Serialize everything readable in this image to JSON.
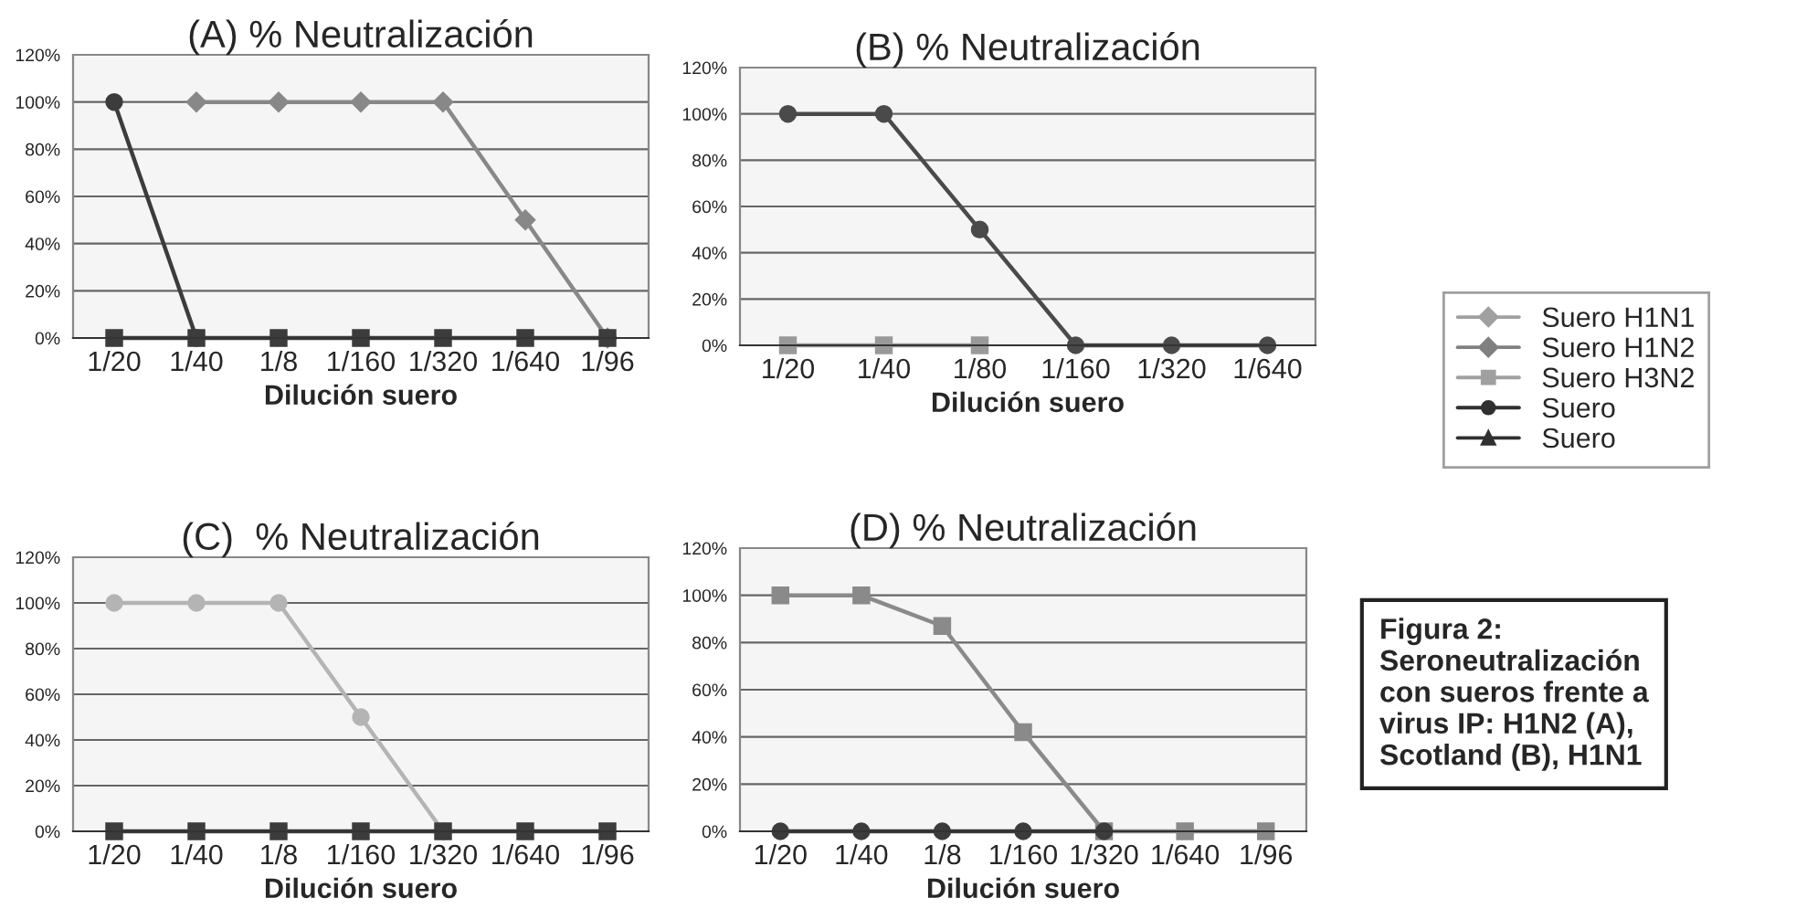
{
  "chart_data": [
    {
      "type": "line",
      "title": "(A) % Neutralización",
      "xlabel": "Dilución suero",
      "categories": [
        "1/20",
        "1/40",
        "1/8",
        "1/160",
        "1/320",
        "1/640",
        "1/96"
      ],
      "ylim": [
        0,
        120
      ],
      "yticks": [
        {
          "value": 0,
          "label": "0%"
        },
        {
          "value": 20,
          "label": "20%"
        },
        {
          "value": 40,
          "label": "40%"
        },
        {
          "value": 60,
          "label": "60%"
        },
        {
          "value": 80,
          "label": "80%"
        },
        {
          "value": 100,
          "label": "100%"
        },
        {
          "value": 120,
          "label": "120%"
        }
      ],
      "grid": "y",
      "series": [
        {
          "color": "#888888",
          "marker": "diamond",
          "values": [
            null,
            100,
            100,
            100,
            100,
            50,
            0
          ]
        },
        {
          "color": "#3c3c3c",
          "marker": "circle",
          "values": [
            100,
            0,
            null,
            null,
            null,
            null,
            null
          ]
        },
        {
          "color": "#3c3c3c",
          "marker": "square",
          "values": [
            0,
            0,
            0,
            0,
            0,
            0,
            0
          ]
        }
      ]
    },
    {
      "type": "line",
      "title": "(B) % Neutralización",
      "xlabel": "Dilución suero",
      "categories": [
        "1/20",
        "1/40",
        "1/80",
        "1/160",
        "1/320",
        "1/640"
      ],
      "ylim": [
        0,
        120
      ],
      "yticks": [
        {
          "value": 0,
          "label": "0%"
        },
        {
          "value": 20,
          "label": "20%"
        },
        {
          "value": 40,
          "label": "40%"
        },
        {
          "value": 60,
          "label": "60%"
        },
        {
          "value": 80,
          "label": "80%"
        },
        {
          "value": 100,
          "label": "100%"
        },
        {
          "value": 120,
          "label": "120%"
        }
      ],
      "grid": "y",
      "series": [
        {
          "color": "#999999",
          "marker": "square",
          "values": [
            0,
            0,
            0,
            null,
            null,
            null
          ]
        },
        {
          "color": "#4a4a4a",
          "marker": "circle",
          "values": [
            100,
            100,
            50,
            0,
            0,
            0
          ]
        }
      ]
    },
    {
      "type": "line",
      "title": "(C)  % Neutralización",
      "xlabel": "Dilución suero",
      "categories": [
        "1/20",
        "1/40",
        "1/8",
        "1/160",
        "1/320",
        "1/640",
        "1/96"
      ],
      "ylim": [
        0,
        120
      ],
      "yticks": [
        {
          "value": 0,
          "label": "0%"
        },
        {
          "value": 20,
          "label": "20%"
        },
        {
          "value": 40,
          "label": "40%"
        },
        {
          "value": 60,
          "label": "60%"
        },
        {
          "value": 80,
          "label": "80%"
        },
        {
          "value": 100,
          "label": "100%"
        },
        {
          "value": 120,
          "label": "120%"
        }
      ],
      "grid": "y",
      "series": [
        {
          "color": "#b4b4b4",
          "marker": "circle",
          "values": [
            100,
            100,
            100,
            50,
            0,
            null,
            null
          ]
        },
        {
          "color": "#3c3c3c",
          "marker": "square",
          "values": [
            0,
            0,
            0,
            0,
            0,
            0,
            0
          ]
        }
      ]
    },
    {
      "type": "line",
      "title": "(D) % Neutralización",
      "xlabel": "Dilución suero",
      "categories": [
        "1/20",
        "1/40",
        "1/8",
        "1/160",
        "1/320",
        "1/640",
        "1/96"
      ],
      "ylim": [
        0,
        120
      ],
      "yticks": [
        {
          "value": 0,
          "label": "0%"
        },
        {
          "value": 20,
          "label": "20%"
        },
        {
          "value": 40,
          "label": "40%"
        },
        {
          "value": 60,
          "label": "60%"
        },
        {
          "value": 80,
          "label": "80%"
        },
        {
          "value": 100,
          "label": "100%"
        },
        {
          "value": 120,
          "label": "120%"
        }
      ],
      "grid": "y",
      "series": [
        {
          "color": "#8a8a8a",
          "marker": "square",
          "values": [
            100,
            100,
            87,
            42,
            0,
            0,
            0
          ]
        },
        {
          "color": "#3c3c3c",
          "marker": "circle",
          "values": [
            0,
            0,
            0,
            0,
            0,
            null,
            null
          ]
        }
      ]
    },
    {
      "type": "other",
      "legend": "right",
      "series": [
        {
          "name": "Suero H1N1",
          "color": "#a0a0a0",
          "marker": "diamond"
        },
        {
          "name": "Suero H1N2",
          "color": "#808080",
          "marker": "diamond"
        },
        {
          "name": "Suero H3N2",
          "color": "#a0a0a0",
          "marker": "square"
        },
        {
          "name": "Suero",
          "color": "#303030",
          "marker": "circle"
        },
        {
          "name": "Suero",
          "color": "#303030",
          "marker": "triangle"
        }
      ]
    },
    {
      "type": "other",
      "annotations": [
        "Figura 2:\nSeroneutralización\ncon sueros frente a\nvirus IP: H1N2 (A),\nScotland (B), H1N1"
      ]
    }
  ]
}
